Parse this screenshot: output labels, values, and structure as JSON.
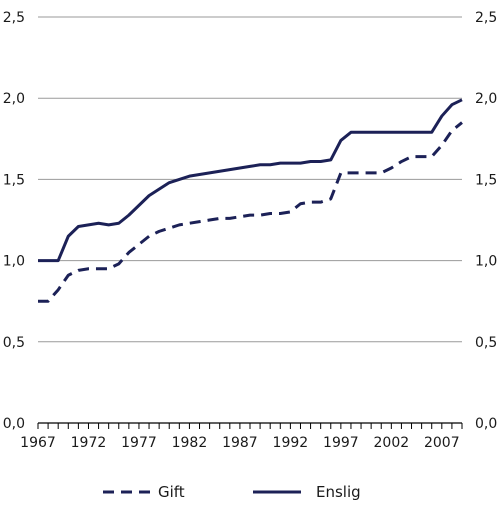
{
  "chart_data": {
    "type": "line",
    "title": "",
    "xlabel": "",
    "ylabel": "",
    "ylim": [
      0,
      2.5
    ],
    "y_ticks": [
      "0,0",
      "0,5",
      "1,0",
      "1,5",
      "2,0",
      "2,5"
    ],
    "y_tick_values": [
      0,
      0.5,
      1.0,
      1.5,
      2.0,
      2.5
    ],
    "xlim": [
      1967,
      2009
    ],
    "x_ticks": [
      "1967",
      "1972",
      "1977",
      "1982",
      "1987",
      "1992",
      "1997",
      "2002",
      "2007"
    ],
    "x_tick_values": [
      1967,
      1972,
      1977,
      1982,
      1987,
      1992,
      1997,
      2002,
      2007
    ],
    "grid": "horizontal",
    "legend_position": "bottom",
    "series": [
      {
        "name": "Gift",
        "style": "dashed",
        "color": "#1c2157",
        "points": [
          [
            1967,
            0.75
          ],
          [
            1968,
            0.75
          ],
          [
            1969,
            0.82
          ],
          [
            1970,
            0.91
          ],
          [
            1971,
            0.94
          ],
          [
            1972,
            0.95
          ],
          [
            1973,
            0.95
          ],
          [
            1974,
            0.95
          ],
          [
            1975,
            0.98
          ],
          [
            1976,
            1.05
          ],
          [
            1977,
            1.1
          ],
          [
            1978,
            1.15
          ],
          [
            1979,
            1.18
          ],
          [
            1980,
            1.2
          ],
          [
            1981,
            1.22
          ],
          [
            1982,
            1.23
          ],
          [
            1983,
            1.24
          ],
          [
            1984,
            1.25
          ],
          [
            1985,
            1.26
          ],
          [
            1986,
            1.26
          ],
          [
            1987,
            1.27
          ],
          [
            1988,
            1.28
          ],
          [
            1989,
            1.28
          ],
          [
            1990,
            1.29
          ],
          [
            1991,
            1.29
          ],
          [
            1992,
            1.3
          ],
          [
            1993,
            1.35
          ],
          [
            1994,
            1.36
          ],
          [
            1995,
            1.36
          ],
          [
            1996,
            1.38
          ],
          [
            1997,
            1.54
          ],
          [
            1998,
            1.54
          ],
          [
            1999,
            1.54
          ],
          [
            2000,
            1.54
          ],
          [
            2001,
            1.54
          ],
          [
            2002,
            1.57
          ],
          [
            2003,
            1.61
          ],
          [
            2004,
            1.64
          ],
          [
            2005,
            1.64
          ],
          [
            2006,
            1.64
          ],
          [
            2007,
            1.71
          ],
          [
            2008,
            1.8
          ],
          [
            2009,
            1.85
          ]
        ]
      },
      {
        "name": "Enslig",
        "style": "solid",
        "color": "#1c2157",
        "points": [
          [
            1967,
            1.0
          ],
          [
            1968,
            1.0
          ],
          [
            1969,
            1.0
          ],
          [
            1970,
            1.15
          ],
          [
            1971,
            1.21
          ],
          [
            1972,
            1.22
          ],
          [
            1973,
            1.23
          ],
          [
            1974,
            1.22
          ],
          [
            1975,
            1.23
          ],
          [
            1976,
            1.28
          ],
          [
            1977,
            1.34
          ],
          [
            1978,
            1.4
          ],
          [
            1979,
            1.44
          ],
          [
            1980,
            1.48
          ],
          [
            1981,
            1.5
          ],
          [
            1982,
            1.52
          ],
          [
            1983,
            1.53
          ],
          [
            1984,
            1.54
          ],
          [
            1985,
            1.55
          ],
          [
            1986,
            1.56
          ],
          [
            1987,
            1.57
          ],
          [
            1988,
            1.58
          ],
          [
            1989,
            1.59
          ],
          [
            1990,
            1.59
          ],
          [
            1991,
            1.6
          ],
          [
            1992,
            1.6
          ],
          [
            1993,
            1.6
          ],
          [
            1994,
            1.61
          ],
          [
            1995,
            1.61
          ],
          [
            1996,
            1.62
          ],
          [
            1997,
            1.74
          ],
          [
            1998,
            1.79
          ],
          [
            1999,
            1.79
          ],
          [
            2000,
            1.79
          ],
          [
            2001,
            1.79
          ],
          [
            2002,
            1.79
          ],
          [
            2003,
            1.79
          ],
          [
            2004,
            1.79
          ],
          [
            2005,
            1.79
          ],
          [
            2006,
            1.79
          ],
          [
            2007,
            1.89
          ],
          [
            2008,
            1.96
          ],
          [
            2009,
            1.99
          ]
        ]
      }
    ]
  }
}
